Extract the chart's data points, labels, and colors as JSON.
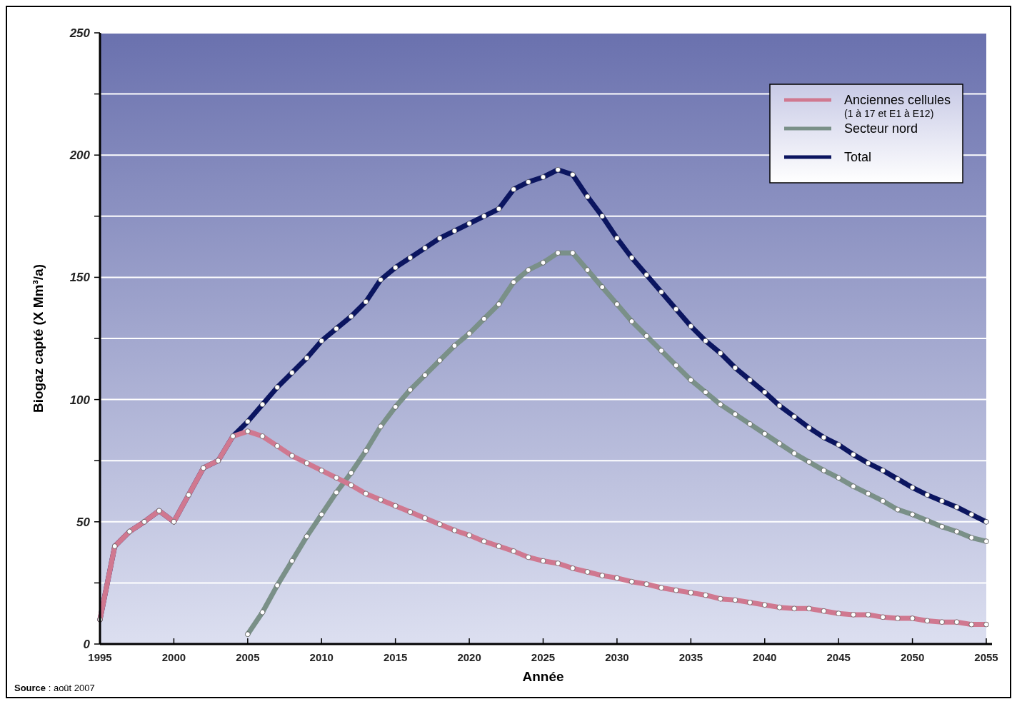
{
  "chart_data": {
    "type": "line",
    "xlabel": "Année",
    "ylabel": "Biogaz capté (X Mm³/a)",
    "x": [
      1995,
      1996,
      1997,
      1998,
      1999,
      2000,
      2001,
      2002,
      2003,
      2004,
      2005,
      2006,
      2007,
      2008,
      2009,
      2010,
      2011,
      2012,
      2013,
      2014,
      2015,
      2016,
      2017,
      2018,
      2019,
      2020,
      2021,
      2022,
      2023,
      2024,
      2025,
      2026,
      2027,
      2028,
      2029,
      2030,
      2031,
      2032,
      2033,
      2034,
      2035,
      2036,
      2037,
      2038,
      2039,
      2040,
      2041,
      2042,
      2043,
      2044,
      2045,
      2046,
      2047,
      2048,
      2049,
      2050,
      2051,
      2052,
      2053,
      2054,
      2055
    ],
    "series": [
      {
        "name": "Total",
        "color": "#0b1560",
        "values": [
          10,
          40,
          46,
          50,
          54.5,
          50,
          61,
          72,
          75,
          85,
          91,
          98,
          105,
          111,
          117,
          124,
          129,
          134,
          140,
          149,
          154,
          158,
          162,
          166,
          169,
          172,
          175,
          178,
          186,
          189,
          191,
          194,
          192,
          183,
          175,
          166,
          158,
          151,
          144,
          137,
          130,
          124,
          119,
          113,
          108,
          103,
          97.5,
          93,
          88.5,
          84.5,
          81.5,
          77.5,
          74,
          71,
          67.5,
          64,
          61,
          58.5,
          56,
          53,
          50
        ]
      },
      {
        "name": "Secteur nord",
        "color": "#7a9088",
        "values": [
          null,
          null,
          null,
          null,
          null,
          null,
          null,
          null,
          null,
          null,
          4,
          13,
          24,
          34,
          44,
          53,
          62,
          70,
          79,
          89,
          97,
          104,
          110,
          116,
          122,
          127,
          133,
          139,
          148,
          153,
          156,
          160,
          160,
          153,
          146,
          139,
          132,
          126,
          120,
          114,
          108,
          103,
          98,
          94,
          90,
          86,
          82,
          78,
          74.5,
          71,
          68,
          64.5,
          61.5,
          58.5,
          55,
          53,
          50.5,
          48,
          46,
          43.5,
          42
        ]
      },
      {
        "name": "Anciennes cellules\n(1 à 17 et E1 à E12)",
        "color": "#d07890",
        "values": [
          10,
          40,
          46,
          50,
          54.5,
          50,
          61,
          72,
          75,
          85,
          87,
          85,
          81,
          77,
          74,
          71,
          68,
          65,
          61.5,
          59,
          56.5,
          54,
          51.5,
          49,
          46.5,
          44.5,
          42,
          40,
          38,
          35.5,
          34,
          33,
          31,
          29.5,
          28,
          27,
          25.5,
          24.5,
          23,
          22,
          21,
          20,
          18.5,
          18,
          17,
          16,
          15,
          14.5,
          14.5,
          13.5,
          12.5,
          12,
          12,
          11,
          10.5,
          10.5,
          9.5,
          9,
          9,
          8,
          8
        ]
      }
    ],
    "xlim": [
      1995,
      2055
    ],
    "xticks": [
      1995,
      2000,
      2005,
      2010,
      2015,
      2020,
      2025,
      2030,
      2035,
      2040,
      2045,
      2050,
      2055
    ],
    "ylim": [
      0,
      250
    ],
    "yticks": [
      0,
      {
        "value": 25,
        "label": null
      },
      50,
      {
        "value": 75,
        "label": null
      },
      100,
      {
        "value": 125,
        "label": null
      },
      150,
      {
        "value": 175,
        "label": null
      },
      200,
      {
        "value": 225,
        "label": null
      },
      250
    ],
    "grid": "y",
    "legend": "top right",
    "marker": "circle",
    "line_style": "solid",
    "annotations": [
      "Source : août 2007"
    ]
  }
}
